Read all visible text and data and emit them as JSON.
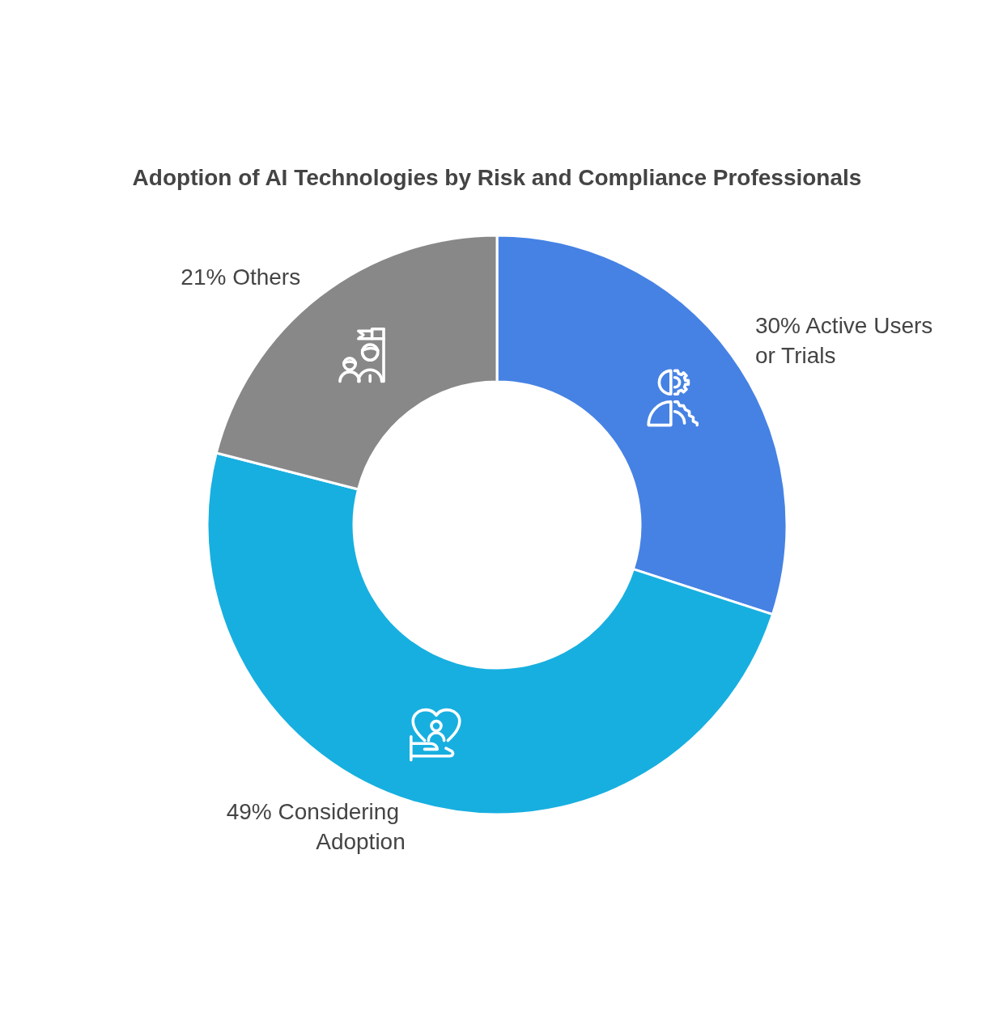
{
  "chart_data": {
    "type": "donut",
    "title": "Adoption of AI Technologies by Risk and Compliance Professionals",
    "categories": [
      "Active Users or Trials",
      "Considering Adoption",
      "Others"
    ],
    "values": [
      30,
      49,
      21
    ],
    "colors": [
      "#4682e4",
      "#17afe0",
      "#888888"
    ],
    "value_labels": [
      "30%",
      "49%",
      "21%"
    ]
  }
}
